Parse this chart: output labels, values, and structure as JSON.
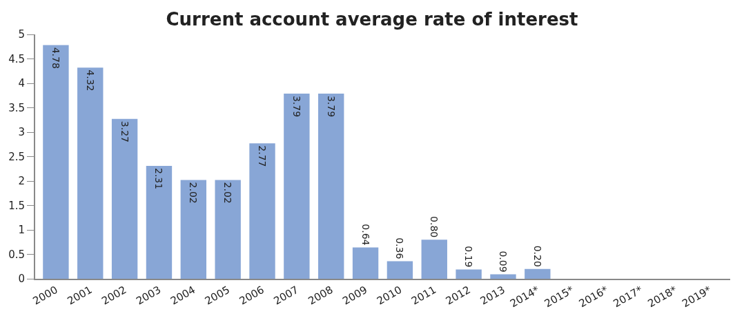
{
  "chart_data": {
    "type": "bar",
    "title": "Current account average rate of interest",
    "categories": [
      "2000",
      "2001",
      "2002",
      "2003",
      "2004",
      "2005",
      "2006",
      "2007",
      "2008",
      "2009",
      "2010",
      "2011",
      "2012",
      "2013",
      "2014*",
      "2015*",
      "2016*",
      "2017*",
      "2018*",
      "2019*"
    ],
    "values": [
      4.78,
      4.32,
      3.27,
      2.31,
      2.02,
      2.02,
      2.77,
      3.79,
      3.79,
      0.64,
      0.36,
      0.8,
      0.19,
      0.09,
      0.2,
      null,
      null,
      null,
      null,
      null
    ],
    "value_labels": [
      "4.78",
      "4.32",
      "3.27",
      "2.31",
      "2.02",
      "2.02",
      "2.77",
      "3.79",
      "3.79",
      "0.64",
      "0.36",
      "0.80",
      "0.19",
      "0.09",
      "0.20",
      null,
      null,
      null,
      null,
      null
    ],
    "color": "#88a6d6",
    "ylim": [
      0,
      5
    ],
    "yticks": [
      0,
      0.5,
      1,
      1.5,
      2,
      2.5,
      3,
      3.5,
      4,
      4.5,
      5
    ]
  }
}
